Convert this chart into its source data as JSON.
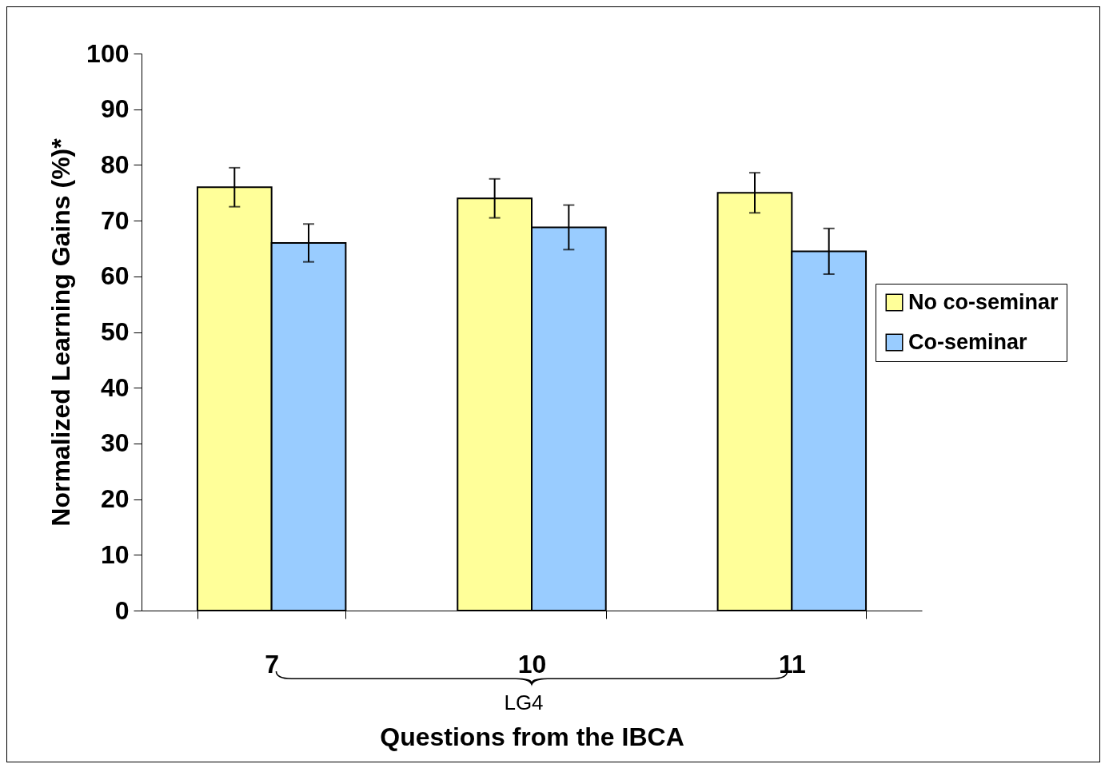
{
  "chart_data": {
    "type": "bar",
    "xlabel": "Questions from the IBCA",
    "ylabel": "Normalized Learning Gains (%)*",
    "categories": [
      "7",
      "10",
      "11"
    ],
    "series": [
      {
        "name": "No co-seminar",
        "color": "#ffff99",
        "values": [
          76,
          74,
          75
        ],
        "errors": [
          3.5,
          3.5,
          3.6
        ]
      },
      {
        "name": "Co-seminar",
        "color": "#99ccff",
        "values": [
          66,
          68.8,
          64.5
        ],
        "errors": [
          3.4,
          4,
          4.1
        ]
      }
    ],
    "ylim": [
      0,
      100
    ],
    "yticks": [
      0,
      10,
      20,
      30,
      40,
      50,
      60,
      70,
      80,
      90,
      100
    ],
    "grid": false,
    "legend": "right",
    "annotations": [
      "LG4"
    ]
  }
}
